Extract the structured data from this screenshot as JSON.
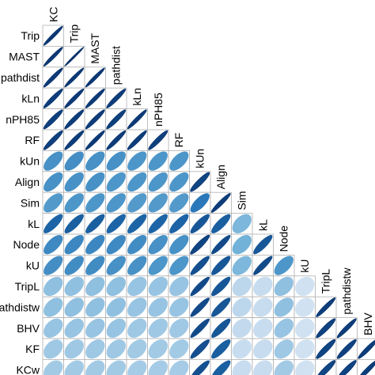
{
  "chart_data": {
    "type": "heatmap",
    "style": "ellipse correlation matrix, lower triangle with diagonal",
    "variables": [
      "KC",
      "Trip",
      "MAST",
      "pathdist",
      "kLn",
      "nPH85",
      "RF",
      "kUn",
      "Align",
      "Sim",
      "kL",
      "Node",
      "kU",
      "TripL",
      "pathdistw",
      "BHV",
      "KF",
      "KCw"
    ],
    "row_labels": [
      "Trip",
      "MAST",
      "pathdist",
      "kLn",
      "nPH85",
      "RF",
      "kUn",
      "Align",
      "Sim",
      "kL",
      "Node",
      "kU",
      "TripL",
      "pathdistw",
      "BHV",
      "KF",
      "KCw"
    ],
    "col_labels": [
      "KC",
      "Trip",
      "MAST",
      "pathdist",
      "kLn",
      "nPH85",
      "RF",
      "kUn",
      "Align",
      "Sim",
      "kL",
      "Node",
      "kU",
      "TripL",
      "pathdistw",
      "BHV"
    ],
    "values": [
      [
        0.97
      ],
      [
        0.97,
        0.99
      ],
      [
        0.96,
        0.97,
        0.97
      ],
      [
        0.95,
        0.96,
        0.96,
        0.95
      ],
      [
        0.94,
        0.95,
        0.95,
        0.94,
        0.96
      ],
      [
        0.94,
        0.95,
        0.96,
        0.95,
        0.95,
        0.94
      ],
      [
        0.62,
        0.63,
        0.62,
        0.62,
        0.6,
        0.6,
        0.6
      ],
      [
        0.62,
        0.62,
        0.62,
        0.6,
        0.6,
        0.6,
        0.6,
        0.92
      ],
      [
        0.58,
        0.6,
        0.6,
        0.6,
        0.58,
        0.58,
        0.58,
        0.72,
        0.95
      ],
      [
        0.8,
        0.82,
        0.82,
        0.8,
        0.8,
        0.8,
        0.8,
        0.85,
        0.82,
        0.45
      ],
      [
        0.65,
        0.66,
        0.66,
        0.65,
        0.64,
        0.62,
        0.62,
        0.92,
        0.9,
        0.48,
        0.85
      ],
      [
        0.63,
        0.64,
        0.64,
        0.62,
        0.62,
        0.6,
        0.6,
        0.88,
        0.85,
        0.45,
        0.9,
        0.6
      ],
      [
        0.4,
        0.4,
        0.4,
        0.4,
        0.38,
        0.38,
        0.38,
        0.9,
        0.85,
        0.28,
        0.25,
        0.4,
        0.2
      ],
      [
        0.4,
        0.4,
        0.4,
        0.4,
        0.38,
        0.38,
        0.38,
        0.9,
        0.85,
        0.28,
        0.25,
        0.4,
        0.2,
        0.95
      ],
      [
        0.38,
        0.38,
        0.38,
        0.38,
        0.36,
        0.36,
        0.36,
        0.9,
        0.85,
        0.26,
        0.25,
        0.38,
        0.2,
        0.93,
        0.95
      ],
      [
        0.36,
        0.36,
        0.36,
        0.36,
        0.35,
        0.35,
        0.35,
        0.88,
        0.82,
        0.25,
        0.25,
        0.36,
        0.2,
        0.92,
        0.93,
        0.95
      ],
      [
        0.35,
        0.35,
        0.35,
        0.35,
        0.34,
        0.34,
        0.34,
        0.88,
        0.82,
        0.25,
        0.25,
        0.35,
        0.2,
        0.92,
        0.93,
        0.95,
        0.95
      ]
    ],
    "grid": true,
    "color_scale": [
      "#f3f8fd",
      "#c7dcef",
      "#6baed6",
      "#2171b5",
      "#08306b"
    ]
  }
}
